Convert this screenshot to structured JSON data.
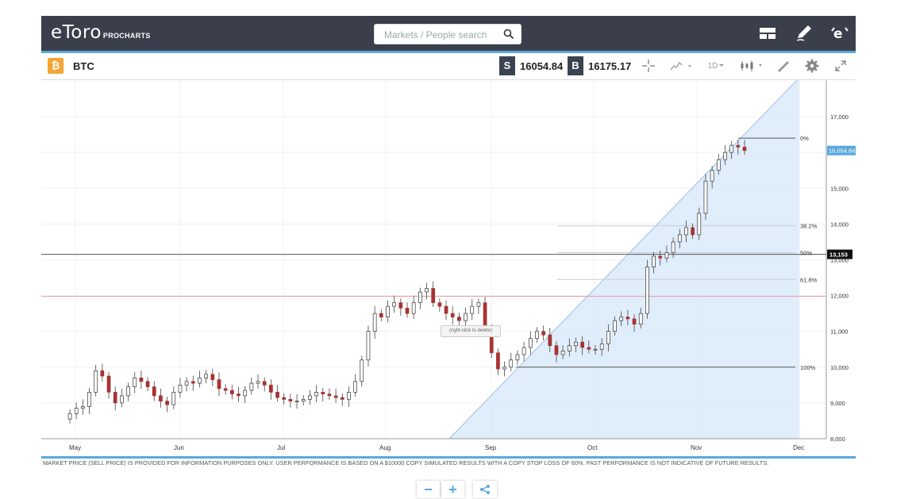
{
  "header": {
    "logo_text": "eToro",
    "logo_sub": "PROCHARTS",
    "search_placeholder": "Markets / People search",
    "icons": [
      "layout-icon",
      "pencil-icon",
      "etoro-e-icon"
    ]
  },
  "instrument": {
    "badge": "₿",
    "symbol": "BTC",
    "sell_tag": "S",
    "sell_price": "16054.84",
    "buy_tag": "B",
    "buy_price": "16175.17",
    "timeframe": "1D"
  },
  "chart": {
    "hint_text": "(right-click to delete)",
    "current_price_label": "16,054.84",
    "hline_label": "13,153",
    "fib_levels": [
      {
        "label": "0%",
        "price": 16400
      },
      {
        "label": "38.2%",
        "price": 13950
      },
      {
        "label": "50%",
        "price": 13200
      },
      {
        "label": "61.8%",
        "price": 12450
      },
      {
        "label": "100%",
        "price": 10000
      }
    ],
    "hlines": [
      {
        "price": 13153,
        "color": "#555555"
      },
      {
        "price": 11980,
        "color": "#f0a0a0"
      }
    ],
    "colors": {
      "up": "#2d7a3a",
      "down": "#a83232",
      "accent": "#5aa9dd",
      "fib_fill": "#d6e7fa"
    }
  },
  "zoom_controls": {
    "minus": "−",
    "plus": "+"
  },
  "footer": {
    "disclaimer": "MARKET PRICE (SELL PRICE) IS PROVIDED FOR INFORMATION PURPOSES ONLY. USER PERFORMANCE IS BASED ON A $10000 COPY SIMULATED RESULTS WITH A COPY STOP LOSS OF 60%. PAST PERFORMANCE IS NOT INDICATIVE OF FUTURE RESULTS."
  },
  "chart_data": {
    "type": "candlestick",
    "title": "BTC",
    "x_labels": [
      "May",
      "Jun",
      "Jul",
      "Aug",
      "Sep",
      "Oct",
      "Nov",
      "Dec"
    ],
    "y_ticks": [
      8000,
      9000,
      10000,
      11000,
      12000,
      13000,
      14000,
      15000,
      16000,
      17000
    ],
    "ylim": [
      8000,
      17800
    ],
    "close_series": [
      8700,
      8850,
      8900,
      9300,
      9900,
      9750,
      9300,
      9000,
      9200,
      9450,
      9700,
      9600,
      9450,
      9200,
      9050,
      8950,
      9300,
      9500,
      9600,
      9550,
      9700,
      9800,
      9650,
      9400,
      9350,
      9250,
      9200,
      9350,
      9550,
      9600,
      9500,
      9300,
      9150,
      9100,
      9050,
      9050,
      9100,
      9200,
      9300,
      9250,
      9200,
      9150,
      9100,
      9300,
      9600,
      10200,
      11000,
      11500,
      11400,
      11700,
      11800,
      11650,
      11500,
      11800,
      12100,
      12200,
      11800,
      11700,
      11500,
      11400,
      11300,
      11500,
      11700,
      11800,
      11000,
      10400,
      9950,
      10000,
      10200,
      10350,
      10550,
      10800,
      11000,
      10900,
      10600,
      10350,
      10450,
      10600,
      10700,
      10550,
      10500,
      10500,
      10650,
      11000,
      11300,
      11400,
      11350,
      11200,
      11500,
      12800,
      13100,
      13050,
      13200,
      13500,
      13700,
      13900,
      13700,
      14300,
      15200,
      15500,
      15800,
      16000,
      16200,
      16150,
      16054
    ]
  }
}
